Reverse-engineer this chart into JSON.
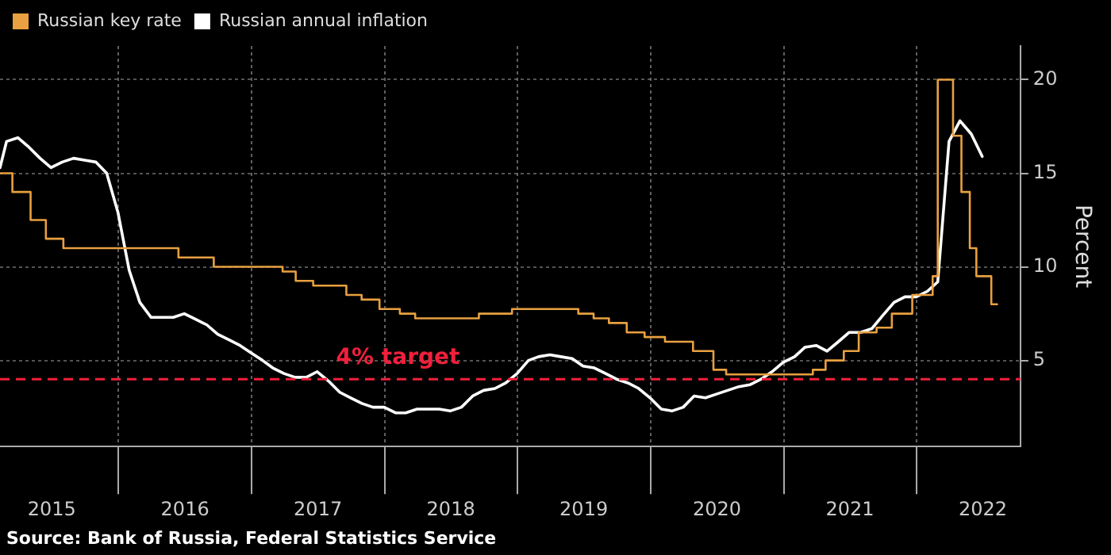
{
  "chart_data": {
    "type": "line",
    "ylabel": "Percent",
    "xlim": [
      "2015-02-10",
      "2022-10-13"
    ],
    "ylim": [
      0.4,
      21.8
    ],
    "yticks": [
      5,
      10,
      15,
      20
    ],
    "xticks": [
      {
        "value": "2015-07-02",
        "label": "2015"
      },
      {
        "value": "2016-01-01",
        "label": null
      },
      {
        "value": "2016-07-02",
        "label": "2016"
      },
      {
        "value": "2017-01-01",
        "label": null
      },
      {
        "value": "2017-07-02",
        "label": "2017"
      },
      {
        "value": "2018-01-01",
        "label": null
      },
      {
        "value": "2018-07-02",
        "label": "2018"
      },
      {
        "value": "2019-01-01",
        "label": null
      },
      {
        "value": "2019-07-02",
        "label": "2019"
      },
      {
        "value": "2020-01-01",
        "label": null
      },
      {
        "value": "2020-07-02",
        "label": "2020"
      },
      {
        "value": "2021-01-01",
        "label": null
      },
      {
        "value": "2021-07-02",
        "label": "2021"
      },
      {
        "value": "2022-01-01",
        "label": null
      },
      {
        "value": "2022-07-02",
        "label": "2022"
      }
    ],
    "grid": true,
    "legend": "top left",
    "marker": "none",
    "series": [
      {
        "name": "Russian key rate",
        "type": "step",
        "color": "#e8a040",
        "x": [
          "2015-02-10",
          "2015-03-16",
          "2015-05-05",
          "2015-06-16",
          "2015-08-03",
          "2016-06-14",
          "2016-09-19",
          "2017-03-27",
          "2017-05-02",
          "2017-06-19",
          "2017-09-18",
          "2017-10-30",
          "2017-12-18",
          "2018-02-12",
          "2018-03-26",
          "2018-09-17",
          "2018-12-17",
          "2019-06-17",
          "2019-07-29",
          "2019-09-09",
          "2019-10-28",
          "2019-12-16",
          "2020-02-10",
          "2020-04-27",
          "2020-06-22",
          "2020-07-27",
          "2021-03-22",
          "2021-04-26",
          "2021-06-15",
          "2021-07-26",
          "2021-09-13",
          "2021-10-25",
          "2021-12-20",
          "2022-02-14",
          "2022-02-28",
          "2022-04-11",
          "2022-05-04",
          "2022-05-27",
          "2022-06-14",
          "2022-07-25",
          "2022-08-10"
        ],
        "values": [
          15,
          14,
          12.5,
          11.5,
          11,
          10.5,
          10,
          9.75,
          9.25,
          9,
          8.5,
          8.25,
          7.75,
          7.5,
          7.25,
          7.5,
          7.75,
          7.5,
          7.25,
          7,
          6.5,
          6.25,
          6,
          5.5,
          4.5,
          4.25,
          4.5,
          5,
          5.5,
          6.5,
          6.75,
          7.5,
          8.5,
          9.5,
          20,
          17,
          14,
          11,
          9.5,
          8,
          8
        ]
      },
      {
        "name": "Russian annual inflation",
        "type": "line",
        "color": "#ffffff",
        "x": [
          "2015-02-10",
          "2015-02-28",
          "2015-03-31",
          "2015-04-30",
          "2015-05-31",
          "2015-06-30",
          "2015-07-31",
          "2015-08-31",
          "2015-09-30",
          "2015-10-31",
          "2015-11-30",
          "2015-12-31",
          "2016-01-31",
          "2016-02-29",
          "2016-03-31",
          "2016-04-30",
          "2016-05-31",
          "2016-06-30",
          "2016-07-31",
          "2016-08-31",
          "2016-09-30",
          "2016-10-31",
          "2016-11-30",
          "2016-12-31",
          "2017-01-31",
          "2017-02-28",
          "2017-03-31",
          "2017-04-30",
          "2017-05-31",
          "2017-06-30",
          "2017-07-31",
          "2017-08-31",
          "2017-09-30",
          "2017-10-31",
          "2017-11-30",
          "2017-12-31",
          "2018-01-31",
          "2018-02-28",
          "2018-03-31",
          "2018-04-30",
          "2018-05-31",
          "2018-06-30",
          "2018-07-31",
          "2018-08-31",
          "2018-09-30",
          "2018-10-31",
          "2018-11-30",
          "2018-12-31",
          "2019-01-31",
          "2019-02-28",
          "2019-03-31",
          "2019-04-30",
          "2019-05-31",
          "2019-06-30",
          "2019-07-31",
          "2019-08-31",
          "2019-09-30",
          "2019-10-31",
          "2019-11-30",
          "2019-12-31",
          "2020-01-31",
          "2020-02-29",
          "2020-03-31",
          "2020-04-30",
          "2020-05-31",
          "2020-06-30",
          "2020-07-31",
          "2020-08-31",
          "2020-09-30",
          "2020-10-31",
          "2020-11-30",
          "2020-12-31",
          "2021-01-31",
          "2021-02-28",
          "2021-03-31",
          "2021-04-30",
          "2021-05-31",
          "2021-06-30",
          "2021-07-31",
          "2021-08-31",
          "2021-09-30",
          "2021-10-31",
          "2021-11-30",
          "2021-12-31",
          "2022-01-31",
          "2022-02-28",
          "2022-03-31",
          "2022-04-30",
          "2022-05-31",
          "2022-06-30"
        ],
        "values": [
          15.3,
          16.7,
          16.9,
          16.4,
          15.8,
          15.3,
          15.6,
          15.8,
          15.7,
          15.6,
          15.0,
          12.9,
          9.8,
          8.1,
          7.3,
          7.3,
          7.3,
          7.5,
          7.2,
          6.9,
          6.4,
          6.1,
          5.8,
          5.4,
          5.0,
          4.6,
          4.3,
          4.1,
          4.1,
          4.4,
          3.9,
          3.3,
          3.0,
          2.7,
          2.5,
          2.5,
          2.2,
          2.2,
          2.4,
          2.4,
          2.4,
          2.3,
          2.5,
          3.1,
          3.4,
          3.5,
          3.8,
          4.3,
          5.0,
          5.2,
          5.3,
          5.2,
          5.1,
          4.7,
          4.6,
          4.3,
          4.0,
          3.8,
          3.5,
          3.0,
          2.4,
          2.3,
          2.5,
          3.1,
          3.0,
          3.2,
          3.4,
          3.6,
          3.7,
          4.0,
          4.4,
          4.9,
          5.2,
          5.7,
          5.8,
          5.5,
          6.0,
          6.5,
          6.5,
          6.7,
          7.4,
          8.1,
          8.4,
          8.4,
          8.7,
          9.2,
          16.7,
          17.8,
          17.1,
          15.9
        ]
      }
    ],
    "ref_lines": [
      {
        "axis": "y",
        "value": 4,
        "label": "4% target",
        "color": "#f0203c",
        "line_style": "dashed"
      }
    ],
    "annotations": [
      "Source: Bank of Russia, Federal Statistics Service"
    ]
  }
}
